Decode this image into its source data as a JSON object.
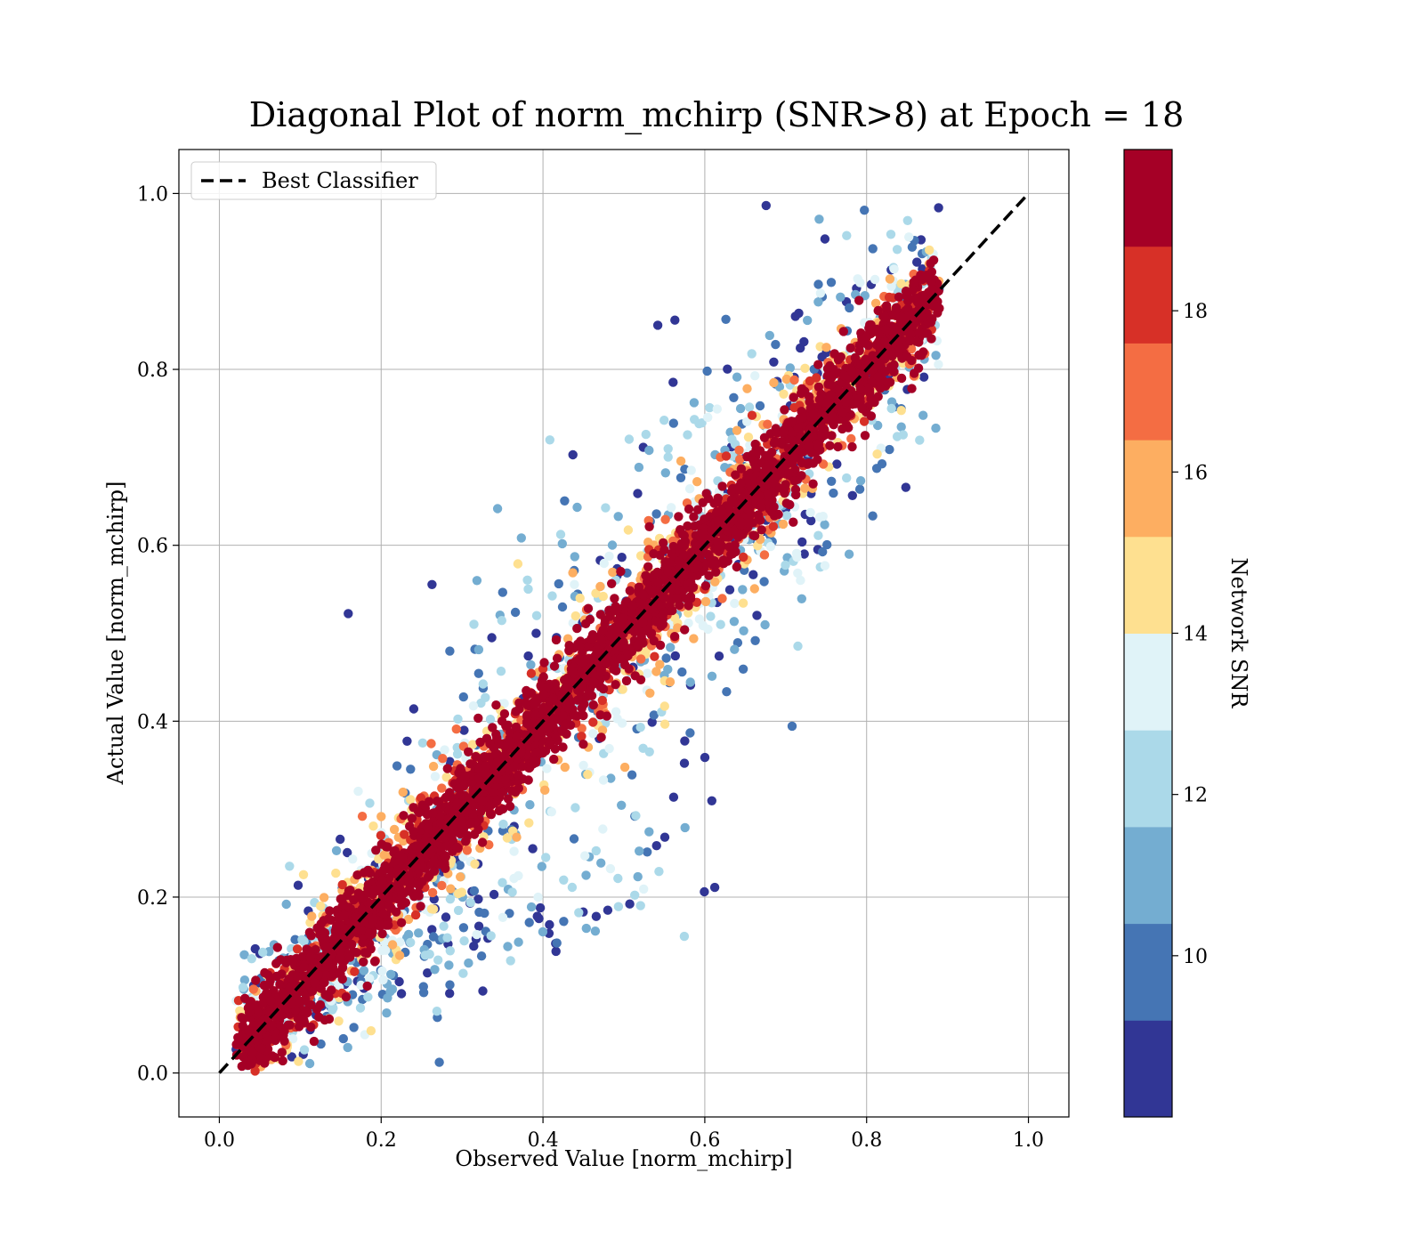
{
  "chart_data": {
    "type": "scatter",
    "title": "Diagonal Plot of norm_mchirp (SNR>8) at Epoch = 18",
    "xlabel": "Observed Value [norm_mchirp]",
    "ylabel": "Actual Value [norm_mchirp]",
    "xlim": [
      -0.05,
      1.05
    ],
    "ylim": [
      -0.05,
      1.05
    ],
    "x_ticks": [
      "0.0",
      "0.2",
      "0.4",
      "0.6",
      "0.8",
      "1.0"
    ],
    "y_ticks": [
      "0.0",
      "0.2",
      "0.4",
      "0.6",
      "0.8",
      "1.0"
    ],
    "x_tick_values": [
      0.0,
      0.2,
      0.4,
      0.6,
      0.8,
      1.0
    ],
    "y_tick_values": [
      0.0,
      0.2,
      0.4,
      0.6,
      0.8,
      1.0
    ],
    "grid": true,
    "legend": {
      "placement": "upper-left",
      "entries": [
        {
          "label": "Best Classifier",
          "style": "dashed",
          "color": "#000000"
        }
      ]
    },
    "reference_line": {
      "name": "Best Classifier",
      "x": [
        0.0,
        1.0
      ],
      "y": [
        0.0,
        1.0
      ]
    },
    "colorbar": {
      "label": "Network SNR",
      "min": 8,
      "max": 20,
      "tick_values": [
        10,
        12,
        14,
        16,
        18
      ],
      "tick_labels": [
        "10",
        "12",
        "14",
        "16",
        "18"
      ],
      "colors": [
        "#313695",
        "#4575b4",
        "#74add1",
        "#abd9e9",
        "#e0f3f8",
        "#fee090",
        "#fdae61",
        "#f46d43",
        "#d73027",
        "#a50026"
      ]
    },
    "scatter_summary": {
      "color_by": "Network SNR",
      "x_range": [
        0.02,
        0.89
      ],
      "y_range": [
        0.0,
        1.0
      ],
      "relationship": "points concentrated along the y = x diagonal; higher SNR points lie closer to the diagonal, lower SNR points spread farther from it"
    }
  }
}
